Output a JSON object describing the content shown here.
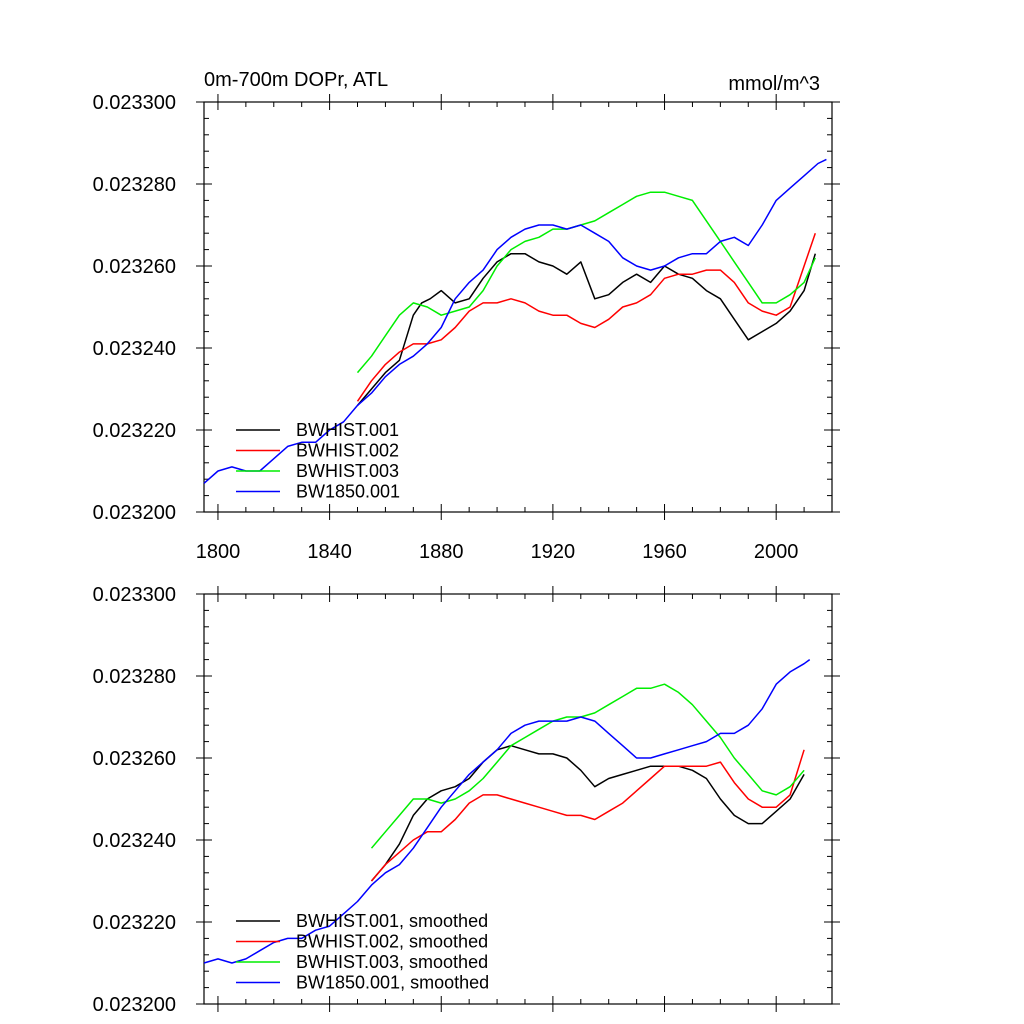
{
  "chart_data": [
    {
      "type": "line",
      "title": "0m-700m DOPr, ATL",
      "units": "mmol/m^3",
      "xlim": [
        1795,
        2020
      ],
      "ylim": [
        0.0232,
        0.0233
      ],
      "x_ticks": [
        1800,
        1840,
        1880,
        1920,
        1960,
        2000
      ],
      "x_tick_labels": [
        "1800",
        "1840",
        "1880",
        "1920",
        "1960",
        "2000"
      ],
      "y_ticks": [
        0.0232,
        0.02322,
        0.02324,
        0.02326,
        0.02328,
        0.0233
      ],
      "y_tick_labels": [
        "0.023200",
        "0.023220",
        "0.023240",
        "0.023260",
        "0.023280",
        "0.023300"
      ],
      "legend_position": "lower-left",
      "series": [
        {
          "name": "BWHIST.001",
          "color": "#000000",
          "x": [
            1850,
            1855,
            1860,
            1865,
            1870,
            1873,
            1876,
            1880,
            1885,
            1890,
            1895,
            1900,
            1905,
            1910,
            1915,
            1920,
            1925,
            1930,
            1935,
            1940,
            1945,
            1950,
            1955,
            1960,
            1965,
            1970,
            1975,
            1980,
            1985,
            1990,
            1995,
            2000,
            2005,
            2010,
            2014
          ],
          "values": [
            0.023226,
            0.02323,
            0.023234,
            0.023237,
            0.023248,
            0.023251,
            0.023252,
            0.023254,
            0.023251,
            0.023252,
            0.023257,
            0.023261,
            0.023263,
            0.023263,
            0.023261,
            0.02326,
            0.023258,
            0.023261,
            0.023252,
            0.023253,
            0.023256,
            0.023258,
            0.023256,
            0.02326,
            0.023258,
            0.023257,
            0.023254,
            0.023252,
            0.023247,
            0.023242,
            0.023244,
            0.023246,
            0.023249,
            0.023254,
            0.023263
          ]
        },
        {
          "name": "BWHIST.002",
          "color": "#ff0000",
          "x": [
            1850,
            1855,
            1860,
            1865,
            1870,
            1875,
            1880,
            1885,
            1890,
            1895,
            1900,
            1905,
            1910,
            1915,
            1920,
            1925,
            1930,
            1935,
            1940,
            1945,
            1950,
            1955,
            1960,
            1965,
            1970,
            1975,
            1980,
            1985,
            1990,
            1995,
            2000,
            2005,
            2010,
            2014
          ],
          "values": [
            0.023227,
            0.023232,
            0.023236,
            0.023239,
            0.023241,
            0.023241,
            0.023242,
            0.023245,
            0.023249,
            0.023251,
            0.023251,
            0.023252,
            0.023251,
            0.023249,
            0.023248,
            0.023248,
            0.023246,
            0.023245,
            0.023247,
            0.02325,
            0.023251,
            0.023253,
            0.023257,
            0.023258,
            0.023258,
            0.023259,
            0.023259,
            0.023256,
            0.023251,
            0.023249,
            0.023248,
            0.02325,
            0.02326,
            0.023268
          ]
        },
        {
          "name": "BWHIST.003",
          "color": "#00ee00",
          "x": [
            1850,
            1855,
            1860,
            1865,
            1870,
            1875,
            1880,
            1885,
            1890,
            1895,
            1900,
            1905,
            1910,
            1915,
            1920,
            1925,
            1930,
            1935,
            1940,
            1945,
            1950,
            1955,
            1960,
            1965,
            1970,
            1975,
            1980,
            1985,
            1990,
            1995,
            2000,
            2005,
            2010,
            2014
          ],
          "values": [
            0.023234,
            0.023238,
            0.023243,
            0.023248,
            0.023251,
            0.02325,
            0.023248,
            0.023249,
            0.02325,
            0.023254,
            0.02326,
            0.023264,
            0.023266,
            0.023267,
            0.023269,
            0.023269,
            0.02327,
            0.023271,
            0.023273,
            0.023275,
            0.023277,
            0.023278,
            0.023278,
            0.023277,
            0.023276,
            0.023271,
            0.023266,
            0.023261,
            0.023256,
            0.023251,
            0.023251,
            0.023253,
            0.023256,
            0.023262
          ]
        },
        {
          "name": "BW1850.001",
          "color": "#0000ff",
          "x": [
            1795,
            1800,
            1805,
            1810,
            1815,
            1820,
            1825,
            1830,
            1835,
            1840,
            1845,
            1850,
            1855,
            1860,
            1865,
            1870,
            1875,
            1880,
            1885,
            1890,
            1895,
            1900,
            1905,
            1910,
            1915,
            1920,
            1925,
            1930,
            1935,
            1940,
            1945,
            1950,
            1955,
            1960,
            1965,
            1970,
            1975,
            1980,
            1985,
            1990,
            1995,
            2000,
            2005,
            2010,
            2015,
            2018
          ],
          "values": [
            0.023207,
            0.02321,
            0.023211,
            0.02321,
            0.02321,
            0.023213,
            0.023216,
            0.023217,
            0.023217,
            0.02322,
            0.023222,
            0.023226,
            0.023229,
            0.023233,
            0.023236,
            0.023238,
            0.023241,
            0.023245,
            0.023252,
            0.023256,
            0.023259,
            0.023264,
            0.023267,
            0.023269,
            0.02327,
            0.02327,
            0.023269,
            0.02327,
            0.023268,
            0.023266,
            0.023262,
            0.02326,
            0.023259,
            0.02326,
            0.023262,
            0.023263,
            0.023263,
            0.023266,
            0.023267,
            0.023265,
            0.02327,
            0.023276,
            0.023279,
            0.023282,
            0.023285,
            0.023286
          ]
        }
      ]
    },
    {
      "type": "line",
      "title": "",
      "xlim": [
        1795,
        2020
      ],
      "ylim": [
        0.0232,
        0.0233
      ],
      "x_ticks": [
        1800,
        1840,
        1880,
        1920,
        1960,
        2000
      ],
      "y_ticks": [
        0.0232,
        0.02322,
        0.02324,
        0.02326,
        0.02328,
        0.0233
      ],
      "y_tick_labels": [
        "0.023200",
        "0.023220",
        "0.023240",
        "0.023260",
        "0.023280",
        "0.023300"
      ],
      "legend_position": "lower-left",
      "series": [
        {
          "name": "BWHIST.001, smoothed",
          "color": "#000000",
          "x": [
            1855,
            1860,
            1865,
            1870,
            1875,
            1880,
            1885,
            1890,
            1895,
            1900,
            1905,
            1910,
            1915,
            1920,
            1925,
            1930,
            1935,
            1940,
            1945,
            1950,
            1955,
            1960,
            1965,
            1970,
            1975,
            1980,
            1985,
            1990,
            1995,
            2000,
            2005,
            2010
          ],
          "values": [
            0.02323,
            0.023234,
            0.023239,
            0.023246,
            0.02325,
            0.023252,
            0.023253,
            0.023255,
            0.023259,
            0.023262,
            0.023263,
            0.023262,
            0.023261,
            0.023261,
            0.02326,
            0.023257,
            0.023253,
            0.023255,
            0.023256,
            0.023257,
            0.023258,
            0.023258,
            0.023258,
            0.023257,
            0.023255,
            0.02325,
            0.023246,
            0.023244,
            0.023244,
            0.023247,
            0.02325,
            0.023256
          ]
        },
        {
          "name": "BWHIST.002, smoothed",
          "color": "#ff0000",
          "x": [
            1855,
            1860,
            1865,
            1870,
            1875,
            1880,
            1885,
            1890,
            1895,
            1900,
            1905,
            1910,
            1915,
            1920,
            1925,
            1930,
            1935,
            1940,
            1945,
            1950,
            1955,
            1960,
            1965,
            1970,
            1975,
            1980,
            1985,
            1990,
            1995,
            2000,
            2005,
            2010
          ],
          "values": [
            0.02323,
            0.023234,
            0.023237,
            0.02324,
            0.023242,
            0.023242,
            0.023245,
            0.023249,
            0.023251,
            0.023251,
            0.02325,
            0.023249,
            0.023248,
            0.023247,
            0.023246,
            0.023246,
            0.023245,
            0.023247,
            0.023249,
            0.023252,
            0.023255,
            0.023258,
            0.023258,
            0.023258,
            0.023258,
            0.023259,
            0.023254,
            0.02325,
            0.023248,
            0.023248,
            0.023251,
            0.023262
          ]
        },
        {
          "name": "BWHIST.003, smoothed",
          "color": "#00ee00",
          "x": [
            1855,
            1860,
            1865,
            1870,
            1875,
            1880,
            1885,
            1890,
            1895,
            1900,
            1905,
            1910,
            1915,
            1920,
            1925,
            1930,
            1935,
            1940,
            1945,
            1950,
            1955,
            1960,
            1965,
            1970,
            1975,
            1980,
            1985,
            1990,
            1995,
            2000,
            2005,
            2010
          ],
          "values": [
            0.023238,
            0.023242,
            0.023246,
            0.02325,
            0.02325,
            0.023249,
            0.02325,
            0.023252,
            0.023255,
            0.023259,
            0.023263,
            0.023265,
            0.023267,
            0.023269,
            0.02327,
            0.02327,
            0.023271,
            0.023273,
            0.023275,
            0.023277,
            0.023277,
            0.023278,
            0.023276,
            0.023273,
            0.023269,
            0.023265,
            0.02326,
            0.023256,
            0.023252,
            0.023251,
            0.023253,
            0.023257
          ]
        },
        {
          "name": "BW1850.001, smoothed",
          "color": "#0000ff",
          "x": [
            1795,
            1800,
            1805,
            1810,
            1815,
            1820,
            1825,
            1830,
            1835,
            1840,
            1845,
            1850,
            1855,
            1860,
            1865,
            1870,
            1875,
            1880,
            1885,
            1890,
            1895,
            1900,
            1905,
            1910,
            1915,
            1920,
            1925,
            1930,
            1935,
            1940,
            1945,
            1950,
            1955,
            1960,
            1965,
            1970,
            1975,
            1980,
            1985,
            1990,
            1995,
            2000,
            2005,
            2010,
            2012
          ],
          "values": [
            0.02321,
            0.023211,
            0.02321,
            0.023211,
            0.023213,
            0.023215,
            0.023216,
            0.023216,
            0.023218,
            0.023219,
            0.023222,
            0.023225,
            0.023229,
            0.023232,
            0.023234,
            0.023238,
            0.023243,
            0.023248,
            0.023252,
            0.023256,
            0.023259,
            0.023262,
            0.023266,
            0.023268,
            0.023269,
            0.023269,
            0.023269,
            0.02327,
            0.023269,
            0.023266,
            0.023263,
            0.02326,
            0.02326,
            0.023261,
            0.023262,
            0.023263,
            0.023264,
            0.023266,
            0.023266,
            0.023268,
            0.023272,
            0.023278,
            0.023281,
            0.023283,
            0.023284
          ]
        }
      ]
    }
  ]
}
